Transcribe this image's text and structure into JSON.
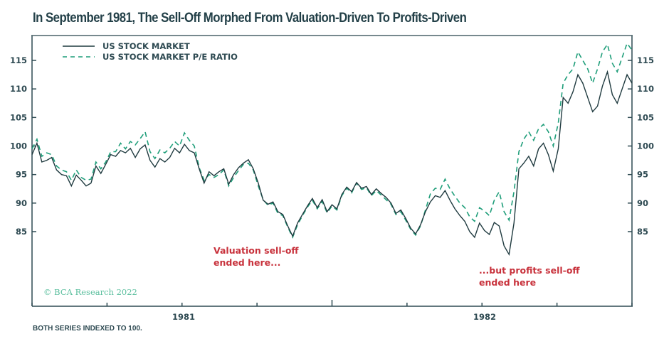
{
  "title": "In September 1981, The Sell-Off Morphed From Valuation-Driven To Profits-Driven",
  "footnote": "BOTH SERIES INDEXED TO 100.",
  "copyright": "© BCA Research 2022",
  "chart_data": {
    "type": "line",
    "title": "In September 1981, The Sell-Off Morphed From Valuation-Driven To Profits-Driven",
    "xlabel": "",
    "ylabel": "",
    "ylim": [
      78,
      119
    ],
    "yticks": [
      85,
      90,
      95,
      100,
      105,
      110,
      115
    ],
    "y_axes": [
      "left",
      "right"
    ],
    "x_range_quarters": 8,
    "x_tick_count": 9,
    "x_labels": [
      {
        "label": "1981",
        "position_quarter": 2
      },
      {
        "label": "1982",
        "position_quarter": 6
      }
    ],
    "grid": false,
    "legend": {
      "placement": "top-left",
      "entries": [
        "US STOCK MARKET",
        "US STOCK MARKET P/E RATIO"
      ]
    },
    "annotations": [
      {
        "text": [
          "Valuation sell-off",
          "ended here..."
        ],
        "color": "#c8323c"
      },
      {
        "text": [
          "...but profits sell-off",
          "ended here"
        ],
        "color": "#c8323c"
      }
    ],
    "series": [
      {
        "name": "US STOCK MARKET",
        "style": "solid",
        "color": "#1f3a3f",
        "values": [
          98.5,
          100.5,
          97.2,
          97.5,
          98.0,
          95.8,
          95.0,
          94.8,
          93.0,
          94.9,
          94.0,
          93.0,
          93.5,
          96.5,
          95.2,
          96.8,
          98.5,
          98.2,
          99.2,
          98.8,
          99.6,
          98.0,
          99.5,
          100.2,
          97.5,
          96.3,
          97.8,
          97.2,
          98.0,
          99.6,
          98.8,
          100.3,
          99.2,
          98.8,
          96.0,
          93.5,
          95.5,
          94.8,
          95.5,
          96.0,
          93.3,
          95.0,
          96.2,
          97.0,
          97.6,
          96.0,
          93.5,
          90.5,
          89.8,
          90.2,
          88.5,
          88.0,
          86.0,
          84.2,
          86.5,
          88.0,
          89.5,
          90.8,
          89.2,
          90.6,
          88.5,
          89.7,
          89.0,
          91.5,
          92.8,
          92.0,
          93.6,
          92.6,
          92.9,
          91.5,
          92.5,
          91.7,
          91.0,
          90.0,
          88.2,
          88.8,
          87.3,
          85.6,
          84.6,
          86.2,
          88.5,
          90.2,
          91.3,
          91.0,
          92.2,
          90.5,
          89.0,
          87.8,
          86.8,
          85.0,
          84.0,
          86.5,
          85.2,
          84.5,
          86.6,
          86.0,
          82.5,
          81.0,
          86.5,
          96.0,
          97.0,
          98.2,
          96.5,
          99.5,
          100.5,
          98.5,
          95.6,
          99.5,
          108.5,
          107.5,
          109.5,
          112.5,
          111.0,
          108.5,
          106.0,
          107.0,
          110.5,
          113.0,
          109.0,
          107.5,
          110.0,
          112.5,
          111.0
        ]
      },
      {
        "name": "US STOCK MARKET P/E RATIO",
        "style": "dashed",
        "color": "#1f9e7a",
        "values": [
          99.5,
          101.2,
          98.2,
          98.8,
          98.5,
          96.5,
          95.8,
          95.5,
          94.0,
          95.8,
          94.5,
          94.0,
          94.2,
          97.2,
          96.0,
          97.2,
          99.0,
          99.0,
          100.5,
          99.5,
          100.8,
          100.2,
          101.3,
          102.5,
          99.0,
          97.8,
          99.3,
          98.8,
          99.6,
          100.8,
          100.0,
          102.3,
          101.0,
          100.0,
          96.2,
          94.0,
          95.0,
          94.5,
          95.0,
          95.8,
          93.0,
          94.5,
          95.7,
          96.8,
          97.0,
          95.8,
          93.0,
          90.6,
          89.6,
          90.0,
          88.2,
          87.8,
          85.8,
          84.0,
          86.2,
          87.8,
          89.3,
          90.5,
          89.0,
          90.3,
          88.3,
          89.5,
          88.8,
          91.3,
          92.6,
          91.8,
          93.5,
          92.4,
          92.7,
          91.3,
          92.2,
          91.4,
          90.6,
          89.8,
          88.0,
          88.5,
          87.0,
          85.4,
          84.4,
          86.0,
          88.8,
          91.6,
          92.6,
          92.4,
          94.2,
          92.5,
          91.2,
          90.0,
          89.2,
          87.6,
          86.8,
          89.2,
          88.6,
          87.8,
          90.5,
          92.0,
          88.5,
          87.0,
          92.0,
          99.0,
          101.2,
          102.5,
          101.0,
          103.0,
          103.8,
          102.5,
          100.0,
          104.0,
          111.0,
          112.5,
          113.5,
          116.5,
          115.0,
          113.5,
          111.0,
          113.5,
          116.5,
          117.8,
          114.5,
          113.0,
          115.5,
          118.0,
          116.8
        ]
      }
    ]
  },
  "legend": {
    "items": [
      {
        "label": "US STOCK MARKET"
      },
      {
        "label": "US STOCK MARKET P/E RATIO"
      }
    ]
  },
  "annotations": {
    "valuation": {
      "line1": "Valuation sell-off",
      "line2": "ended here..."
    },
    "profits": {
      "line1": "...but profits sell-off",
      "line2": "ended here"
    }
  },
  "axis": {
    "x_labels": [
      "1981",
      "1982"
    ]
  }
}
